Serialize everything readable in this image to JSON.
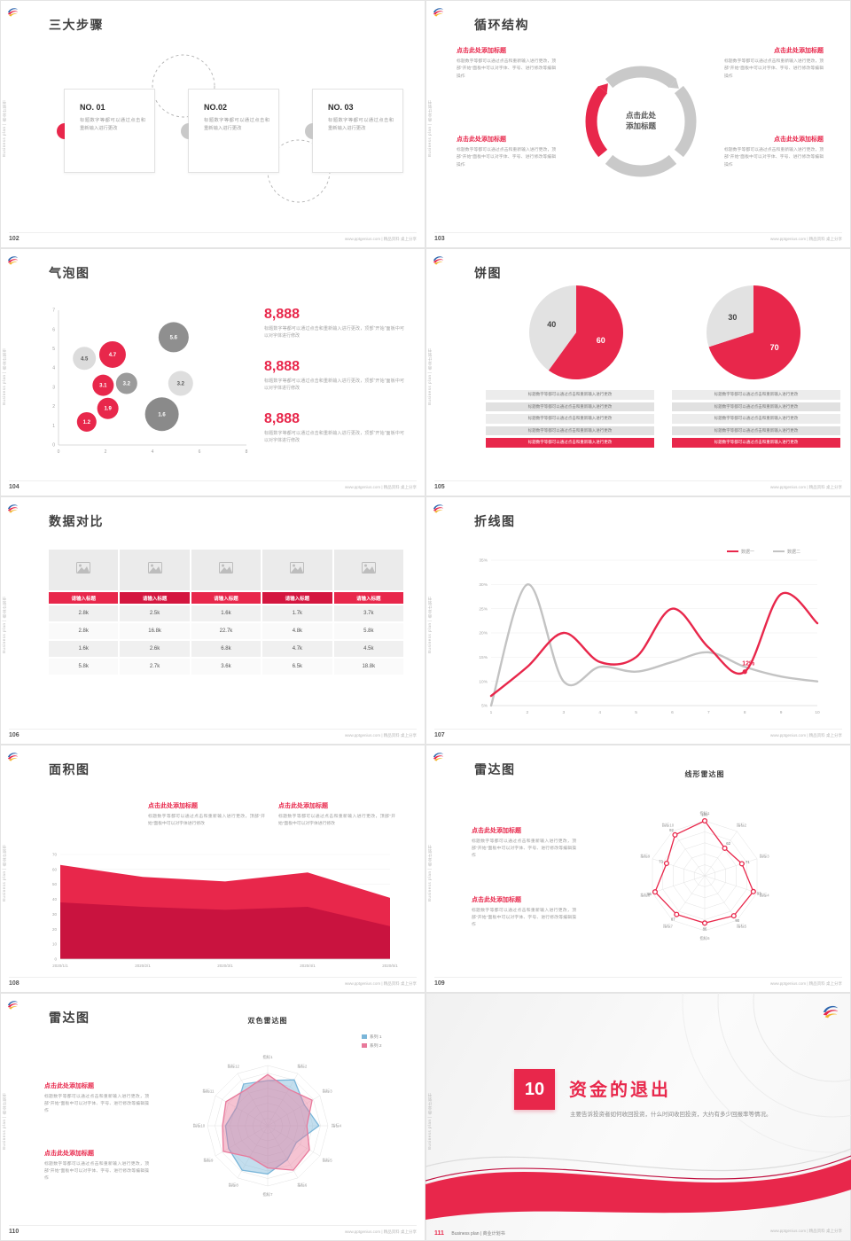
{
  "common": {
    "side_text": "Business plan | 商业计划书",
    "footer": "www.pptgenius.com | 精品资料 桌上分享",
    "accent": "#e8274b"
  },
  "strings": {
    "click_title": "点击此处添加标题",
    "body_short": "标题数字等都可以通过点击和重新输入进行更改",
    "body_mid": "标题数字等都可以通过点击和重新输入进行更改，顶部“开始”面板中可以对字体进行修改",
    "body_long": "标题数字等都可以通过点击和重新输入进行更改，顶部“开始”面板中可以对字体、字号、进行修改等编辑操作"
  },
  "slides": {
    "s102": {
      "title": "三大步骤",
      "page": "102",
      "steps": [
        {
          "num": "NO. 01"
        },
        {
          "num": "NO.02"
        },
        {
          "num": "NO. 03"
        }
      ]
    },
    "s103": {
      "title": "循环结构",
      "page": "103",
      "center_line1": "点击此处",
      "center_line2": "添加标题"
    },
    "s104": {
      "title": "气泡图",
      "page": "104",
      "stats": [
        {
          "value": "8,888"
        },
        {
          "value": "8,888"
        },
        {
          "value": "8,888"
        }
      ]
    },
    "s105": {
      "title": "饼图",
      "page": "105"
    },
    "s106": {
      "title": "数据对比",
      "page": "106",
      "headers": [
        "请输入标题",
        "请输入标题",
        "请输入标题",
        "请输入标题",
        "请输入标题"
      ],
      "rows": [
        [
          "2.8k",
          "2.5k",
          "1.6k",
          "1.7k",
          "3.7k"
        ],
        [
          "2.8k",
          "16.8k",
          "22.7k",
          "4.8k",
          "5.8k"
        ],
        [
          "1.6k",
          "2.6k",
          "6.8k",
          "4.7k",
          "4.5k"
        ],
        [
          "5.8k",
          "2.7k",
          "3.6k",
          "6.5k",
          "18.8k"
        ]
      ]
    },
    "s107": {
      "title": "折线图",
      "page": "107"
    },
    "s108": {
      "title": "面积图",
      "page": "108"
    },
    "s109": {
      "title": "雷达图",
      "page": "109"
    },
    "s110": {
      "title": "雷达图",
      "page": "110"
    },
    "s111": {
      "title": "资金的退出",
      "page": "111",
      "number": "10",
      "subtitle": "主要告诉投资者如何收回投资，什么时间收回投资，大约有多少回报率等情况。",
      "footer_label": "Business plan | 商业计划书"
    }
  },
  "chart_data": [
    {
      "id": "bubble104",
      "type": "scatter",
      "xlim": [
        0,
        8
      ],
      "ylim": [
        0,
        7
      ],
      "xticks": [
        0,
        2,
        4,
        6,
        8
      ],
      "yticks": [
        0,
        1,
        2,
        3,
        4,
        5,
        6,
        7
      ],
      "points": [
        {
          "x": 1.1,
          "y": 4.5,
          "r": 13,
          "label": "4.5",
          "color": "#dcdcdc",
          "text": "#555"
        },
        {
          "x": 2.3,
          "y": 4.7,
          "r": 15,
          "label": "4.7",
          "color": "#e8274b",
          "text": "#fff"
        },
        {
          "x": 1.9,
          "y": 3.1,
          "r": 12,
          "label": "3.1",
          "color": "#e8274b",
          "text": "#fff"
        },
        {
          "x": 2.9,
          "y": 3.2,
          "r": 12,
          "label": "3.2",
          "color": "#9b9b9b",
          "text": "#fff"
        },
        {
          "x": 2.1,
          "y": 1.9,
          "r": 12,
          "label": "1.9",
          "color": "#e8274b",
          "text": "#fff"
        },
        {
          "x": 1.2,
          "y": 1.2,
          "r": 11,
          "label": "1.2",
          "color": "#e8274b",
          "text": "#fff"
        },
        {
          "x": 4.9,
          "y": 5.6,
          "r": 17,
          "label": "5.6",
          "color": "#8f8f8f",
          "text": "#fff"
        },
        {
          "x": 5.2,
          "y": 3.2,
          "r": 14,
          "label": "3.2",
          "color": "#dedede",
          "text": "#555"
        },
        {
          "x": 4.4,
          "y": 1.6,
          "r": 19,
          "label": "1.6",
          "color": "#8a8a8a",
          "text": "#fff"
        }
      ]
    },
    {
      "id": "pie105a",
      "type": "pie",
      "values": [
        {
          "label": "60",
          "value": 60,
          "color": "#e8274b",
          "text": "#fff"
        },
        {
          "label": "40",
          "value": 40,
          "color": "#e2e2e2",
          "text": "#444"
        }
      ]
    },
    {
      "id": "pie105b",
      "type": "pie",
      "values": [
        {
          "label": "70",
          "value": 70,
          "color": "#e8274b",
          "text": "#fff"
        },
        {
          "label": "30",
          "value": 30,
          "color": "#e2e2e2",
          "text": "#444"
        }
      ]
    },
    {
      "id": "line107",
      "type": "line",
      "x": [
        1,
        2,
        3,
        4,
        5,
        6,
        7,
        8,
        9,
        10
      ],
      "ylim": [
        5,
        35
      ],
      "yticks": [
        "5%",
        "10%",
        "15%",
        "20%",
        "25%",
        "30%",
        "35%"
      ],
      "series": [
        {
          "name": "数据一",
          "color": "#e8274b",
          "values": [
            7,
            13,
            20,
            14,
            15,
            25,
            17,
            12,
            28,
            22
          ]
        },
        {
          "name": "数据二",
          "color": "#c3c3c3",
          "values": [
            5,
            30,
            10,
            13,
            12,
            14,
            16,
            13,
            11,
            10
          ]
        }
      ],
      "annotation": {
        "x": 8,
        "y": 12,
        "label": "12%"
      }
    },
    {
      "id": "area108",
      "type": "area",
      "categories": [
        "2020/1/1",
        "2020/2/1",
        "2020/3/1",
        "2020/4/1",
        "2020/5/1"
      ],
      "ylim": [
        0,
        70
      ],
      "yticks": [
        0,
        10,
        20,
        30,
        40,
        50,
        60,
        70
      ],
      "series": [
        {
          "color": "#c9133f",
          "values": [
            38,
            35,
            33,
            35,
            22
          ]
        },
        {
          "color": "#e8274b",
          "values": [
            63,
            55,
            52,
            58,
            41
          ]
        }
      ]
    },
    {
      "id": "radar109",
      "type": "radar",
      "title": "线形雷达图",
      "max": 100,
      "rings": 5,
      "axes": [
        "指标1",
        "指标2",
        "指标3",
        "指标4",
        "指标5",
        "指标6",
        "指标7",
        "指标8",
        "指标9",
        "指标10"
      ],
      "series": [
        {
          "name": "系列1",
          "color": "#e8274b",
          "fill": "none",
          "markers": true,
          "labels": true,
          "values": [
            100,
            62,
            71,
            93,
            90,
            86,
            87,
            95,
            73,
            92
          ]
        }
      ]
    },
    {
      "id": "radar110",
      "type": "radar",
      "title": "双色雷达图",
      "max": 100,
      "rings": 8,
      "axes": [
        "指标1",
        "指标2",
        "指标3",
        "指标4",
        "指标5",
        "指标6",
        "指标7",
        "指标8",
        "指标9",
        "指标10",
        "指标11",
        "指标12"
      ],
      "series": [
        {
          "name": "系列 1",
          "color": "#7ab6d9",
          "fill": "rgba(122,182,217,0.45)",
          "values": [
            75,
            88,
            70,
            85,
            55,
            65,
            80,
            85,
            75,
            70,
            60,
            80
          ]
        },
        {
          "name": "系列 2",
          "color": "#e8799b",
          "fill": "rgba(232,121,155,0.45)",
          "values": [
            85,
            70,
            85,
            65,
            80,
            85,
            70,
            60,
            85,
            75,
            80,
            70
          ]
        }
      ]
    }
  ]
}
